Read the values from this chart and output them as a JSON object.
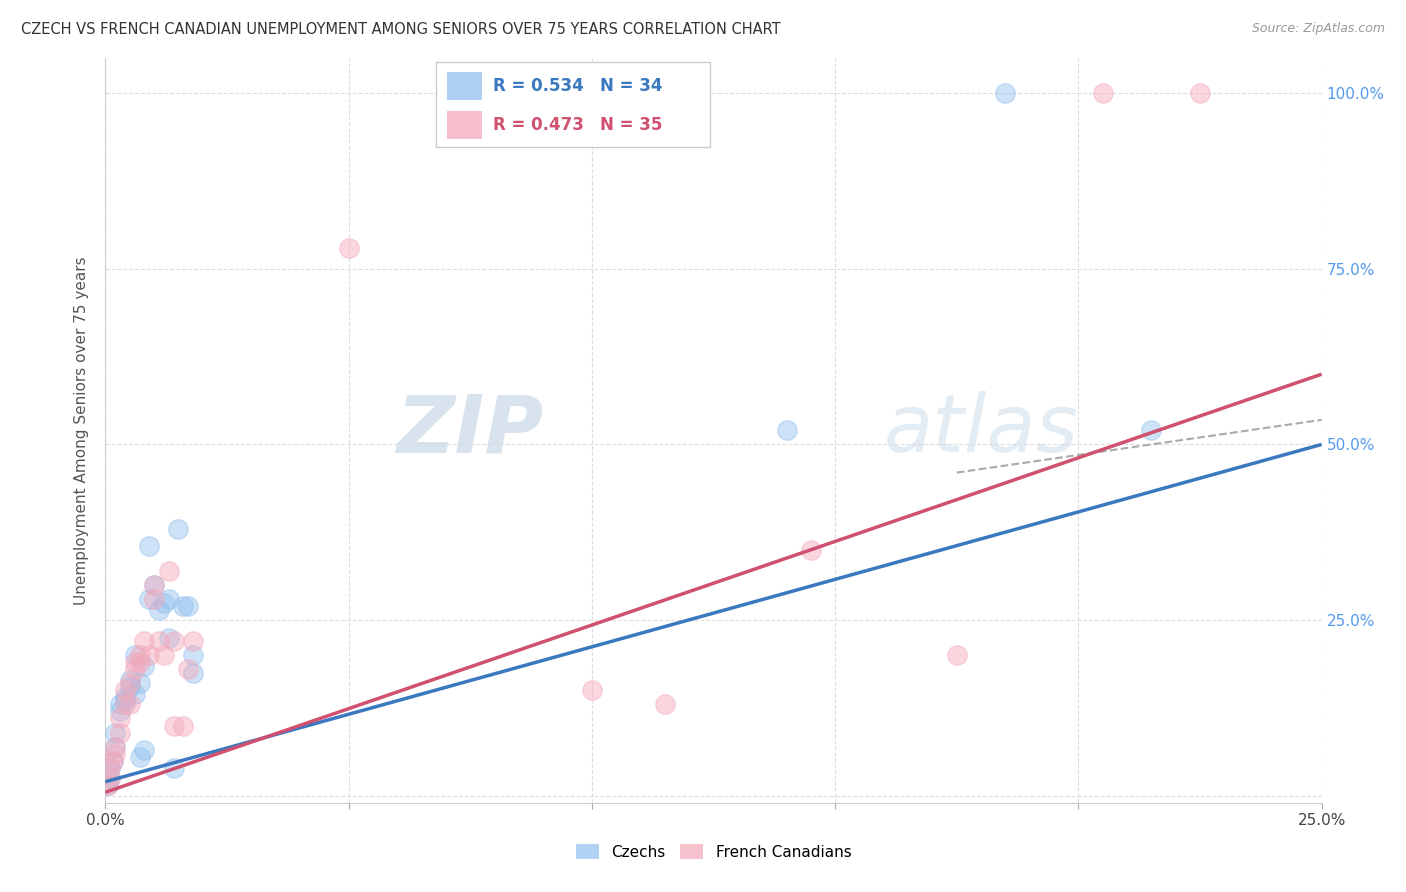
{
  "title": "CZECH VS FRENCH CANADIAN UNEMPLOYMENT AMONG SENIORS OVER 75 YEARS CORRELATION CHART",
  "source": "Source: ZipAtlas.com",
  "ylabel": "Unemployment Among Seniors over 75 years",
  "x_min": 0.0,
  "x_max": 0.25,
  "y_min": -0.01,
  "y_max": 1.05,
  "czech_R": 0.534,
  "czech_N": 34,
  "french_R": 0.473,
  "french_N": 35,
  "legend_label_czech": "Czechs",
  "legend_label_french": "French Canadians",
  "czech_color": "#90BFEE",
  "french_color": "#F4A8BA",
  "czech_line_color": "#3A78C0",
  "french_line_color": "#D05070",
  "czech_line": [
    [
      0.0,
      0.02
    ],
    [
      0.25,
      0.5
    ]
  ],
  "french_line": [
    [
      0.0,
      0.005
    ],
    [
      0.25,
      0.6
    ]
  ],
  "dashed_line": [
    [
      0.175,
      0.46
    ],
    [
      0.25,
      0.535
    ]
  ],
  "czech_points": [
    [
      0.0005,
      0.015
    ],
    [
      0.001,
      0.025
    ],
    [
      0.001,
      0.04
    ],
    [
      0.0015,
      0.05
    ],
    [
      0.002,
      0.07
    ],
    [
      0.002,
      0.09
    ],
    [
      0.003,
      0.12
    ],
    [
      0.003,
      0.13
    ],
    [
      0.004,
      0.14
    ],
    [
      0.004,
      0.135
    ],
    [
      0.005,
      0.155
    ],
    [
      0.005,
      0.165
    ],
    [
      0.006,
      0.2
    ],
    [
      0.006,
      0.145
    ],
    [
      0.007,
      0.055
    ],
    [
      0.007,
      0.16
    ],
    [
      0.008,
      0.065
    ],
    [
      0.008,
      0.185
    ],
    [
      0.009,
      0.28
    ],
    [
      0.009,
      0.355
    ],
    [
      0.01,
      0.3
    ],
    [
      0.011,
      0.265
    ],
    [
      0.012,
      0.275
    ],
    [
      0.013,
      0.28
    ],
    [
      0.013,
      0.225
    ],
    [
      0.014,
      0.04
    ],
    [
      0.015,
      0.38
    ],
    [
      0.016,
      0.27
    ],
    [
      0.017,
      0.27
    ],
    [
      0.018,
      0.175
    ],
    [
      0.018,
      0.2
    ],
    [
      0.14,
      0.52
    ],
    [
      0.185,
      1.0
    ],
    [
      0.215,
      0.52
    ]
  ],
  "french_points": [
    [
      0.0005,
      0.015
    ],
    [
      0.001,
      0.025
    ],
    [
      0.001,
      0.04
    ],
    [
      0.0015,
      0.05
    ],
    [
      0.002,
      0.06
    ],
    [
      0.002,
      0.07
    ],
    [
      0.003,
      0.09
    ],
    [
      0.003,
      0.11
    ],
    [
      0.004,
      0.13
    ],
    [
      0.004,
      0.15
    ],
    [
      0.005,
      0.13
    ],
    [
      0.005,
      0.16
    ],
    [
      0.006,
      0.18
    ],
    [
      0.006,
      0.19
    ],
    [
      0.007,
      0.2
    ],
    [
      0.007,
      0.19
    ],
    [
      0.008,
      0.22
    ],
    [
      0.009,
      0.2
    ],
    [
      0.01,
      0.28
    ],
    [
      0.01,
      0.3
    ],
    [
      0.011,
      0.22
    ],
    [
      0.012,
      0.2
    ],
    [
      0.013,
      0.32
    ],
    [
      0.014,
      0.1
    ],
    [
      0.014,
      0.22
    ],
    [
      0.016,
      0.1
    ],
    [
      0.017,
      0.18
    ],
    [
      0.018,
      0.22
    ],
    [
      0.05,
      0.78
    ],
    [
      0.1,
      0.15
    ],
    [
      0.115,
      0.13
    ],
    [
      0.145,
      0.35
    ],
    [
      0.175,
      0.2
    ],
    [
      0.205,
      1.0
    ],
    [
      0.225,
      1.0
    ]
  ]
}
